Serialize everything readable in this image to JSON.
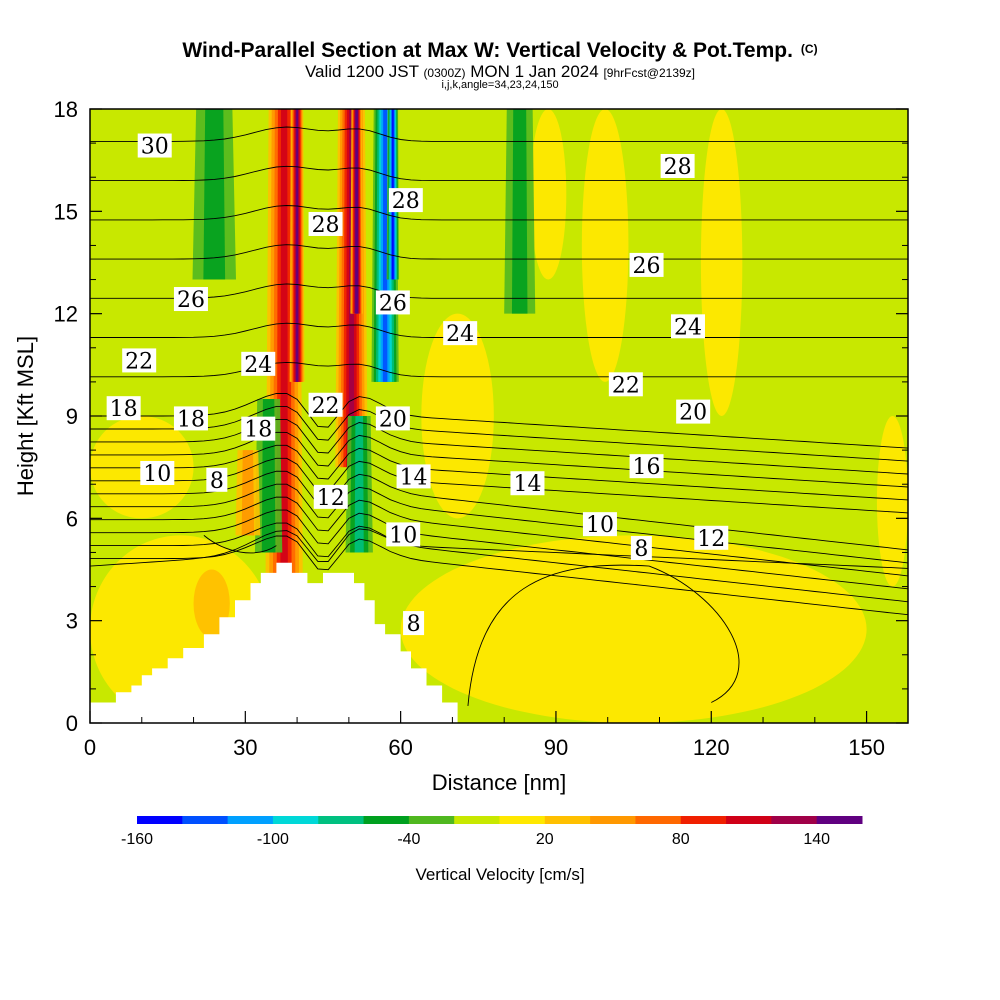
{
  "chart_data": {
    "type": "heatmap",
    "title": "Wind-Parallel Section at Max W: Vertical Velocity & Pot.Temp.",
    "title_mark": "(C)",
    "subtitle": {
      "valid": "Valid 1200 JST",
      "utc": "(0300Z)",
      "date": "MON 1 Jan 2024",
      "fcst": "[9hrFcst@2139z]"
    },
    "indices": "i,j,k,angle=34,23,24,150",
    "xlabel": "Distance [nm]",
    "ylabel": "Height [Kft MSL]",
    "xlim": [
      0,
      158
    ],
    "ylim": [
      0,
      18
    ],
    "xticks": [
      0,
      30,
      60,
      90,
      120,
      150
    ],
    "yticks": [
      0,
      3,
      6,
      9,
      12,
      15,
      18
    ],
    "colorbar": {
      "label": "Vertical Velocity [cm/s]",
      "min": -160,
      "max": 160,
      "step": 20,
      "tick_labels": [
        "-160",
        "-100",
        "-40",
        "20",
        "80",
        "140"
      ],
      "tick_values": [
        -160,
        -100,
        -40,
        20,
        80,
        140
      ],
      "colors": [
        "#0000ff",
        "#0050ff",
        "#00a0ff",
        "#00d8d8",
        "#00c080",
        "#00a020",
        "#50b820",
        "#c8e800",
        "#ffe800",
        "#ffc000",
        "#ff9800",
        "#ff6800",
        "#f02000",
        "#d00018",
        "#a00048",
        "#600080"
      ]
    },
    "background_field": "Vertical velocity (cm/s), mostly weak (0 to 20) with updraft/downdraft plumes near the terrain",
    "terrain_profile": {
      "x": [
        0,
        3,
        5,
        8,
        10,
        12,
        15,
        18,
        22,
        25,
        28,
        31,
        33,
        36,
        39,
        42,
        45,
        48,
        51,
        53,
        55,
        57,
        60,
        62,
        65,
        68,
        71
      ],
      "height": [
        0.6,
        0.6,
        0.9,
        1.1,
        1.4,
        1.6,
        1.9,
        2.2,
        2.6,
        3.1,
        3.6,
        4.1,
        4.4,
        4.7,
        4.4,
        4.1,
        4.4,
        4.4,
        4.1,
        3.6,
        2.9,
        2.6,
        2.1,
        1.6,
        1.1,
        0.6,
        0.3
      ]
    },
    "wplumes": [
      {
        "x": 37.5,
        "y0": 4.2,
        "y1": 18,
        "width": 3.0,
        "w": 100
      },
      {
        "x": 40.0,
        "y0": 10,
        "y1": 18,
        "width": 1.2,
        "w": 130
      },
      {
        "x": 50.5,
        "y0": 7.5,
        "y1": 18,
        "width": 2.6,
        "w": 120
      },
      {
        "x": 51.5,
        "y0": 12,
        "y1": 18,
        "width": 1.0,
        "w": 150
      },
      {
        "x": 57.0,
        "y0": 10,
        "y1": 18,
        "width": 2.2,
        "w": -110
      },
      {
        "x": 58.5,
        "y0": 13,
        "y1": 18,
        "width": 1.0,
        "w": -140
      },
      {
        "x": 24.0,
        "y0": 13,
        "y1": 18,
        "width": 3.5,
        "w": -45
      },
      {
        "x": 34.5,
        "y0": 5.0,
        "y1": 9.5,
        "width": 2.2,
        "w": -45
      },
      {
        "x": 52.0,
        "y0": 5.0,
        "y1": 9.0,
        "width": 2.2,
        "w": -55
      },
      {
        "x": 83.0,
        "y0": 12,
        "y1": 18,
        "width": 2.5,
        "w": -35
      },
      {
        "x": 30.5,
        "y0": 5.5,
        "y1": 8,
        "width": 2.0,
        "w": 35
      }
    ],
    "theta_levels": [
      8,
      10,
      12,
      14,
      16,
      18,
      20,
      22,
      24,
      26,
      28,
      30
    ],
    "contour_labels": [
      {
        "text": "30",
        "x": 12.5,
        "y": 16.9
      },
      {
        "text": "28",
        "x": 45.5,
        "y": 14.6
      },
      {
        "text": "28",
        "x": 61.0,
        "y": 15.3
      },
      {
        "text": "28",
        "x": 113.5,
        "y": 16.3
      },
      {
        "text": "26",
        "x": 19.5,
        "y": 12.4
      },
      {
        "text": "26",
        "x": 58.5,
        "y": 12.3
      },
      {
        "text": "26",
        "x": 107.5,
        "y": 13.4
      },
      {
        "text": "24",
        "x": 32.5,
        "y": 10.5
      },
      {
        "text": "24",
        "x": 71.5,
        "y": 11.4
      },
      {
        "text": "24",
        "x": 115.5,
        "y": 11.6
      },
      {
        "text": "22",
        "x": 9.5,
        "y": 10.6
      },
      {
        "text": "22",
        "x": 45.5,
        "y": 9.3
      },
      {
        "text": "22",
        "x": 103.5,
        "y": 9.9
      },
      {
        "text": "20",
        "x": 58.5,
        "y": 8.9
      },
      {
        "text": "20",
        "x": 116.5,
        "y": 9.1
      },
      {
        "text": "18",
        "x": 6.5,
        "y": 9.2
      },
      {
        "text": "18",
        "x": 19.5,
        "y": 8.9
      },
      {
        "text": "18",
        "x": 32.5,
        "y": 8.6
      },
      {
        "text": "16",
        "x": 107.5,
        "y": 7.5
      },
      {
        "text": "14",
        "x": 62.5,
        "y": 7.2
      },
      {
        "text": "14",
        "x": 84.5,
        "y": 7.0
      },
      {
        "text": "12",
        "x": 46.5,
        "y": 6.6
      },
      {
        "text": "12",
        "x": 120.0,
        "y": 5.4
      },
      {
        "text": "10",
        "x": 13.0,
        "y": 7.3
      },
      {
        "text": "10",
        "x": 60.5,
        "y": 5.5
      },
      {
        "text": "10",
        "x": 98.5,
        "y": 5.8
      },
      {
        "text": "8",
        "x": 24.5,
        "y": 7.1
      },
      {
        "text": "8",
        "x": 106.5,
        "y": 5.1
      },
      {
        "text": "8",
        "x": 62.5,
        "y": 2.9
      }
    ]
  }
}
